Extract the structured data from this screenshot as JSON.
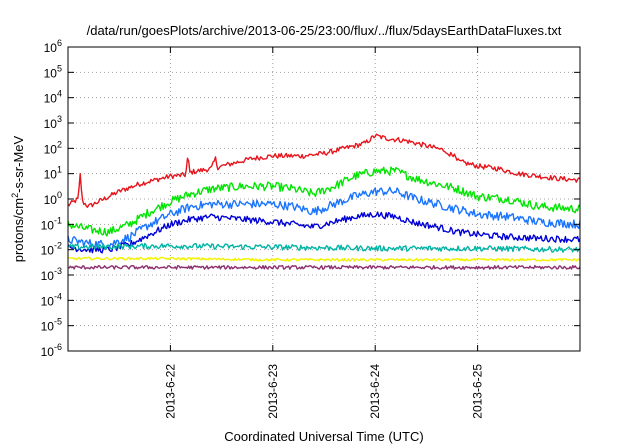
{
  "chart_data": {
    "type": "line",
    "title": "/data/run/goesPlots/archive/2013-06-25/23:00/flux/../flux/5daysEarthDataFluxes.txt",
    "xlabel": "Coordinated Universal Time (UTC)",
    "ylabel_main": "protons/cm",
    "ylabel_sup": "2",
    "ylabel_tail": "-s-sr-MeV",
    "yscale": "log",
    "ylim_exp": [
      -6,
      6
    ],
    "y_tick_exponents": [
      -6,
      -5,
      -4,
      -3,
      -2,
      -1,
      0,
      1,
      2,
      3,
      4,
      5,
      6
    ],
    "y_tick_base": "10",
    "xlim_days": [
      0,
      5
    ],
    "x_ticks": [
      {
        "day": 1,
        "label": "2013-6-22"
      },
      {
        "day": 2,
        "label": "2013-6-23"
      },
      {
        "day": 3,
        "label": "2013-6-24"
      },
      {
        "day": 4,
        "label": "2013-6-25"
      }
    ],
    "grid": true,
    "series": [
      {
        "color": "#e8141c",
        "noise": 0.1,
        "log10_values": [
          [
            0.0,
            -0.25
          ],
          [
            0.1,
            0.0
          ],
          [
            0.12,
            1.0
          ],
          [
            0.14,
            -0.1
          ],
          [
            0.2,
            -0.3
          ],
          [
            0.3,
            -0.1
          ],
          [
            0.4,
            0.1
          ],
          [
            0.5,
            0.3
          ],
          [
            0.7,
            0.6
          ],
          [
            0.9,
            0.8
          ],
          [
            1.0,
            0.9
          ],
          [
            1.15,
            0.95
          ],
          [
            1.17,
            1.7
          ],
          [
            1.19,
            1.05
          ],
          [
            1.4,
            1.2
          ],
          [
            1.44,
            1.6
          ],
          [
            1.46,
            1.25
          ],
          [
            1.6,
            1.4
          ],
          [
            1.8,
            1.6
          ],
          [
            2.0,
            1.7
          ],
          [
            2.3,
            1.7
          ],
          [
            2.5,
            1.8
          ],
          [
            2.7,
            2.0
          ],
          [
            2.9,
            2.2
          ],
          [
            3.0,
            2.5
          ],
          [
            3.1,
            2.4
          ],
          [
            3.3,
            2.3
          ],
          [
            3.5,
            2.1
          ],
          [
            3.7,
            1.9
          ],
          [
            3.72,
            1.6
          ],
          [
            3.74,
            1.9
          ],
          [
            3.8,
            1.5
          ],
          [
            4.0,
            1.3
          ],
          [
            4.2,
            1.2
          ],
          [
            4.4,
            1.0
          ],
          [
            4.6,
            0.9
          ],
          [
            4.8,
            0.8
          ],
          [
            5.0,
            0.75
          ]
        ]
      },
      {
        "color": "#00e600",
        "noise": 0.17,
        "log10_values": [
          [
            0.0,
            -1.0
          ],
          [
            0.2,
            -1.2
          ],
          [
            0.4,
            -1.3
          ],
          [
            0.6,
            -1.0
          ],
          [
            0.8,
            -0.5
          ],
          [
            1.0,
            -0.1
          ],
          [
            1.2,
            0.2
          ],
          [
            1.4,
            0.4
          ],
          [
            1.7,
            0.5
          ],
          [
            2.0,
            0.5
          ],
          [
            2.2,
            0.4
          ],
          [
            2.4,
            0.2
          ],
          [
            2.6,
            0.5
          ],
          [
            2.8,
            0.9
          ],
          [
            3.0,
            1.1
          ],
          [
            3.2,
            1.1
          ],
          [
            3.4,
            0.8
          ],
          [
            3.6,
            0.6
          ],
          [
            3.8,
            0.4
          ],
          [
            4.0,
            0.1
          ],
          [
            4.3,
            0.0
          ],
          [
            4.6,
            -0.3
          ],
          [
            5.0,
            -0.4
          ]
        ]
      },
      {
        "color": "#1a74ff",
        "noise": 0.17,
        "log10_values": [
          [
            0.0,
            -1.6
          ],
          [
            0.2,
            -1.75
          ],
          [
            0.4,
            -1.8
          ],
          [
            0.6,
            -1.5
          ],
          [
            0.8,
            -1.0
          ],
          [
            1.0,
            -0.6
          ],
          [
            1.2,
            -0.3
          ],
          [
            1.4,
            -0.2
          ],
          [
            1.7,
            -0.2
          ],
          [
            2.0,
            -0.2
          ],
          [
            2.2,
            -0.3
          ],
          [
            2.4,
            -0.5
          ],
          [
            2.6,
            -0.2
          ],
          [
            2.8,
            0.1
          ],
          [
            3.0,
            0.3
          ],
          [
            3.2,
            0.3
          ],
          [
            3.4,
            0.0
          ],
          [
            3.6,
            -0.2
          ],
          [
            3.8,
            -0.4
          ],
          [
            4.0,
            -0.6
          ],
          [
            4.3,
            -0.7
          ],
          [
            4.6,
            -0.9
          ],
          [
            5.0,
            -1.0
          ]
        ]
      },
      {
        "color": "#0000d8",
        "noise": 0.13,
        "log10_values": [
          [
            0.0,
            -1.9
          ],
          [
            0.2,
            -2.0
          ],
          [
            0.4,
            -2.0
          ],
          [
            0.6,
            -1.8
          ],
          [
            0.8,
            -1.4
          ],
          [
            1.0,
            -1.0
          ],
          [
            1.2,
            -0.8
          ],
          [
            1.4,
            -0.7
          ],
          [
            1.7,
            -0.8
          ],
          [
            2.0,
            -0.9
          ],
          [
            2.2,
            -1.0
          ],
          [
            2.4,
            -1.1
          ],
          [
            2.6,
            -0.9
          ],
          [
            2.8,
            -0.7
          ],
          [
            3.0,
            -0.6
          ],
          [
            3.2,
            -0.7
          ],
          [
            3.4,
            -0.95
          ],
          [
            3.6,
            -1.1
          ],
          [
            3.8,
            -1.3
          ],
          [
            4.0,
            -1.4
          ],
          [
            4.3,
            -1.5
          ],
          [
            4.6,
            -1.55
          ],
          [
            5.0,
            -1.6
          ]
        ]
      },
      {
        "color": "#00b5a5",
        "noise": 0.11,
        "log10_values": [
          [
            0.0,
            -1.9
          ],
          [
            1.0,
            -1.85
          ],
          [
            2.0,
            -1.9
          ],
          [
            3.0,
            -1.95
          ],
          [
            4.0,
            -1.95
          ],
          [
            5.0,
            -2.0
          ]
        ]
      },
      {
        "color": "#f2f200",
        "noise": 0.05,
        "log10_values": [
          [
            0.0,
            -2.35
          ],
          [
            1.0,
            -2.35
          ],
          [
            2.0,
            -2.4
          ],
          [
            3.0,
            -2.4
          ],
          [
            4.0,
            -2.4
          ],
          [
            5.0,
            -2.4
          ]
        ]
      },
      {
        "color": "#8c2f6e",
        "noise": 0.07,
        "log10_values": [
          [
            0.0,
            -2.7
          ],
          [
            1.0,
            -2.7
          ],
          [
            2.0,
            -2.7
          ],
          [
            3.0,
            -2.7
          ],
          [
            4.0,
            -2.7
          ],
          [
            5.0,
            -2.7
          ]
        ]
      }
    ]
  }
}
